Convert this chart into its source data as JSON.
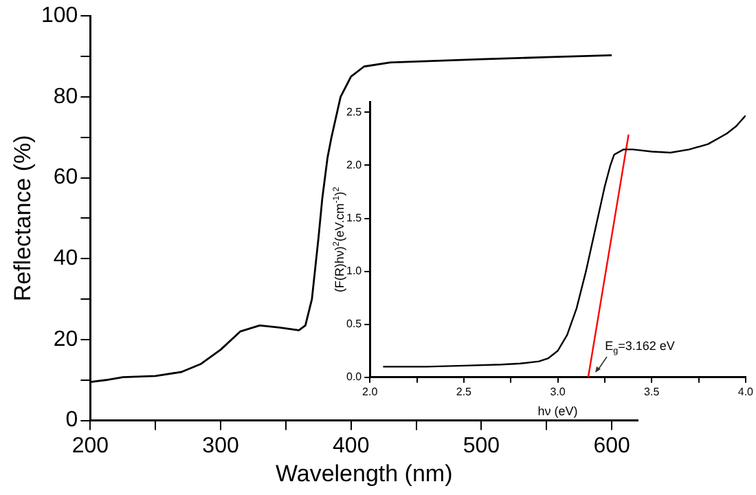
{
  "chart_data": [
    {
      "type": "line",
      "xlabel": "Wavelength (nm)",
      "ylabel": "Reflectance (%)",
      "xlim": [
        200,
        620
      ],
      "xticks": [
        200,
        {
          "value": 250,
          "label": null
        },
        300,
        {
          "value": 350,
          "label": null
        },
        400,
        {
          "value": 450,
          "label": null
        },
        500,
        {
          "value": 550,
          "label": null
        },
        600
      ],
      "ylim": [
        0,
        100
      ],
      "yticks": [
        0,
        {
          "value": 10,
          "label": null
        },
        20,
        {
          "value": 30,
          "label": null
        },
        40,
        {
          "value": 50,
          "label": null
        },
        60,
        {
          "value": 70,
          "label": null
        },
        80,
        {
          "value": 90,
          "label": null
        },
        100
      ],
      "grid": false,
      "legend": false,
      "marker": "none",
      "line_style": "solid",
      "series": [
        {
          "color": "#000000",
          "x": [
            200,
            212,
            225,
            250,
            270,
            285,
            300,
            315,
            330,
            345,
            360,
            365,
            370,
            375,
            378,
            382,
            385,
            392,
            400,
            410,
            430,
            500,
            550,
            600
          ],
          "values": [
            9.5,
            10,
            10.7,
            11,
            12,
            14,
            17.5,
            22,
            23.5,
            23,
            22.3,
            23.5,
            30,
            45,
            55,
            65,
            70,
            80,
            85,
            87.5,
            88.5,
            89.3,
            89.8,
            90.3
          ]
        }
      ]
    },
    {
      "type": "line",
      "xlabel": "hν (eV)",
      "ylabel": "(F(R)hν)$^{2}$(eV.cm$^{-1}$)$^{2}$",
      "xlim": [
        2.0,
        4.0
      ],
      "xticks": [
        {
          "value": 2.0,
          "label": "2.0"
        },
        {
          "value": 2.25,
          "label": null
        },
        2.5,
        {
          "value": 2.75,
          "label": null
        },
        {
          "value": 3.0,
          "label": "3.0"
        },
        {
          "value": 3.25,
          "label": null
        },
        3.5,
        {
          "value": 3.75,
          "label": null
        },
        {
          "value": 4.0,
          "label": "4.0"
        }
      ],
      "ylim": [
        0,
        2.6
      ],
      "yticks": [
        {
          "value": 0,
          "label": "0.0"
        },
        {
          "value": 0.5,
          "label": "0.5"
        },
        {
          "value": 1,
          "label": "1.0"
        },
        {
          "value": 1.5,
          "label": "1.5"
        },
        {
          "value": 2,
          "label": "2.0"
        },
        {
          "value": 2.5,
          "label": "2.5"
        }
      ],
      "grid": false,
      "legend": false,
      "marker": "none",
      "line_style": "solid",
      "annotations": [
        {
          "text": "E$_{g}$=3.162 eV",
          "x": 3.2,
          "y": 0.05
        }
      ],
      "series": [
        {
          "color": "#000000",
          "x": [
            2.07,
            2.3,
            2.5,
            2.7,
            2.8,
            2.9,
            2.95,
            3.0,
            3.05,
            3.1,
            3.15,
            3.2,
            3.25,
            3.28,
            3.3,
            3.35,
            3.4,
            3.5,
            3.6,
            3.7,
            3.8,
            3.9,
            3.95,
            4.0
          ],
          "values": [
            0.1,
            0.1,
            0.11,
            0.12,
            0.13,
            0.15,
            0.18,
            0.25,
            0.4,
            0.65,
            1.0,
            1.4,
            1.8,
            2.0,
            2.1,
            2.15,
            2.15,
            2.13,
            2.12,
            2.15,
            2.2,
            2.3,
            2.37,
            2.47
          ]
        },
        {
          "color": "#ff0000",
          "x": [
            3.162,
            3.377
          ],
          "values": [
            0,
            2.29
          ]
        }
      ]
    }
  ]
}
